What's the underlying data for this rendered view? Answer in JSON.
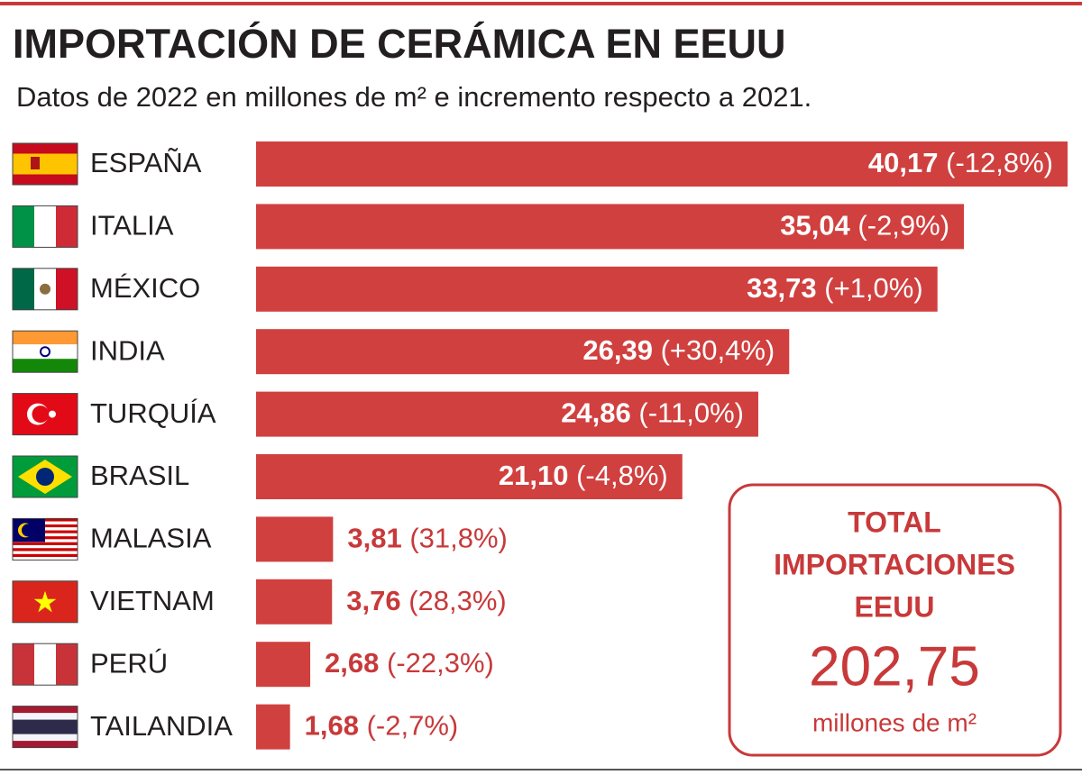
{
  "chart_data": {
    "type": "bar",
    "title": "IMPORTACIÓN DE CERÁMICA EN EEUU",
    "subtitle": "Datos de 2022 en millones de m² e incremento respecto a 2021.",
    "categories": [
      "ESPAÑA",
      "ITALIA",
      "MÉXICO",
      "INDIA",
      "TURQUÍA",
      "BRASIL",
      "MALASIA",
      "VIETNAM",
      "PERÚ",
      "TAILANDIA"
    ],
    "values": [
      40.17,
      35.04,
      33.73,
      26.39,
      24.86,
      21.1,
      3.81,
      3.76,
      2.68,
      1.68
    ],
    "value_labels": [
      "40,17",
      "35,04",
      "33,73",
      "26,39",
      "24,86",
      "21,10",
      "3,81",
      "3,76",
      "2,68",
      "1,68"
    ],
    "change_labels": [
      "(-12,8%)",
      "(-2,9%)",
      "(+1,0%)",
      "(+30,4%)",
      "(-11,0%)",
      "(-4,8%)",
      "(31,8%)",
      "(28,3%)",
      "(-22,3%)",
      "(-2,7%)"
    ],
    "color": "#d0403f",
    "total": {
      "heading": [
        "TOTAL",
        "IMPORTACIONES",
        "EEUU"
      ],
      "value": "202,75",
      "unit": "millones de m²"
    }
  }
}
